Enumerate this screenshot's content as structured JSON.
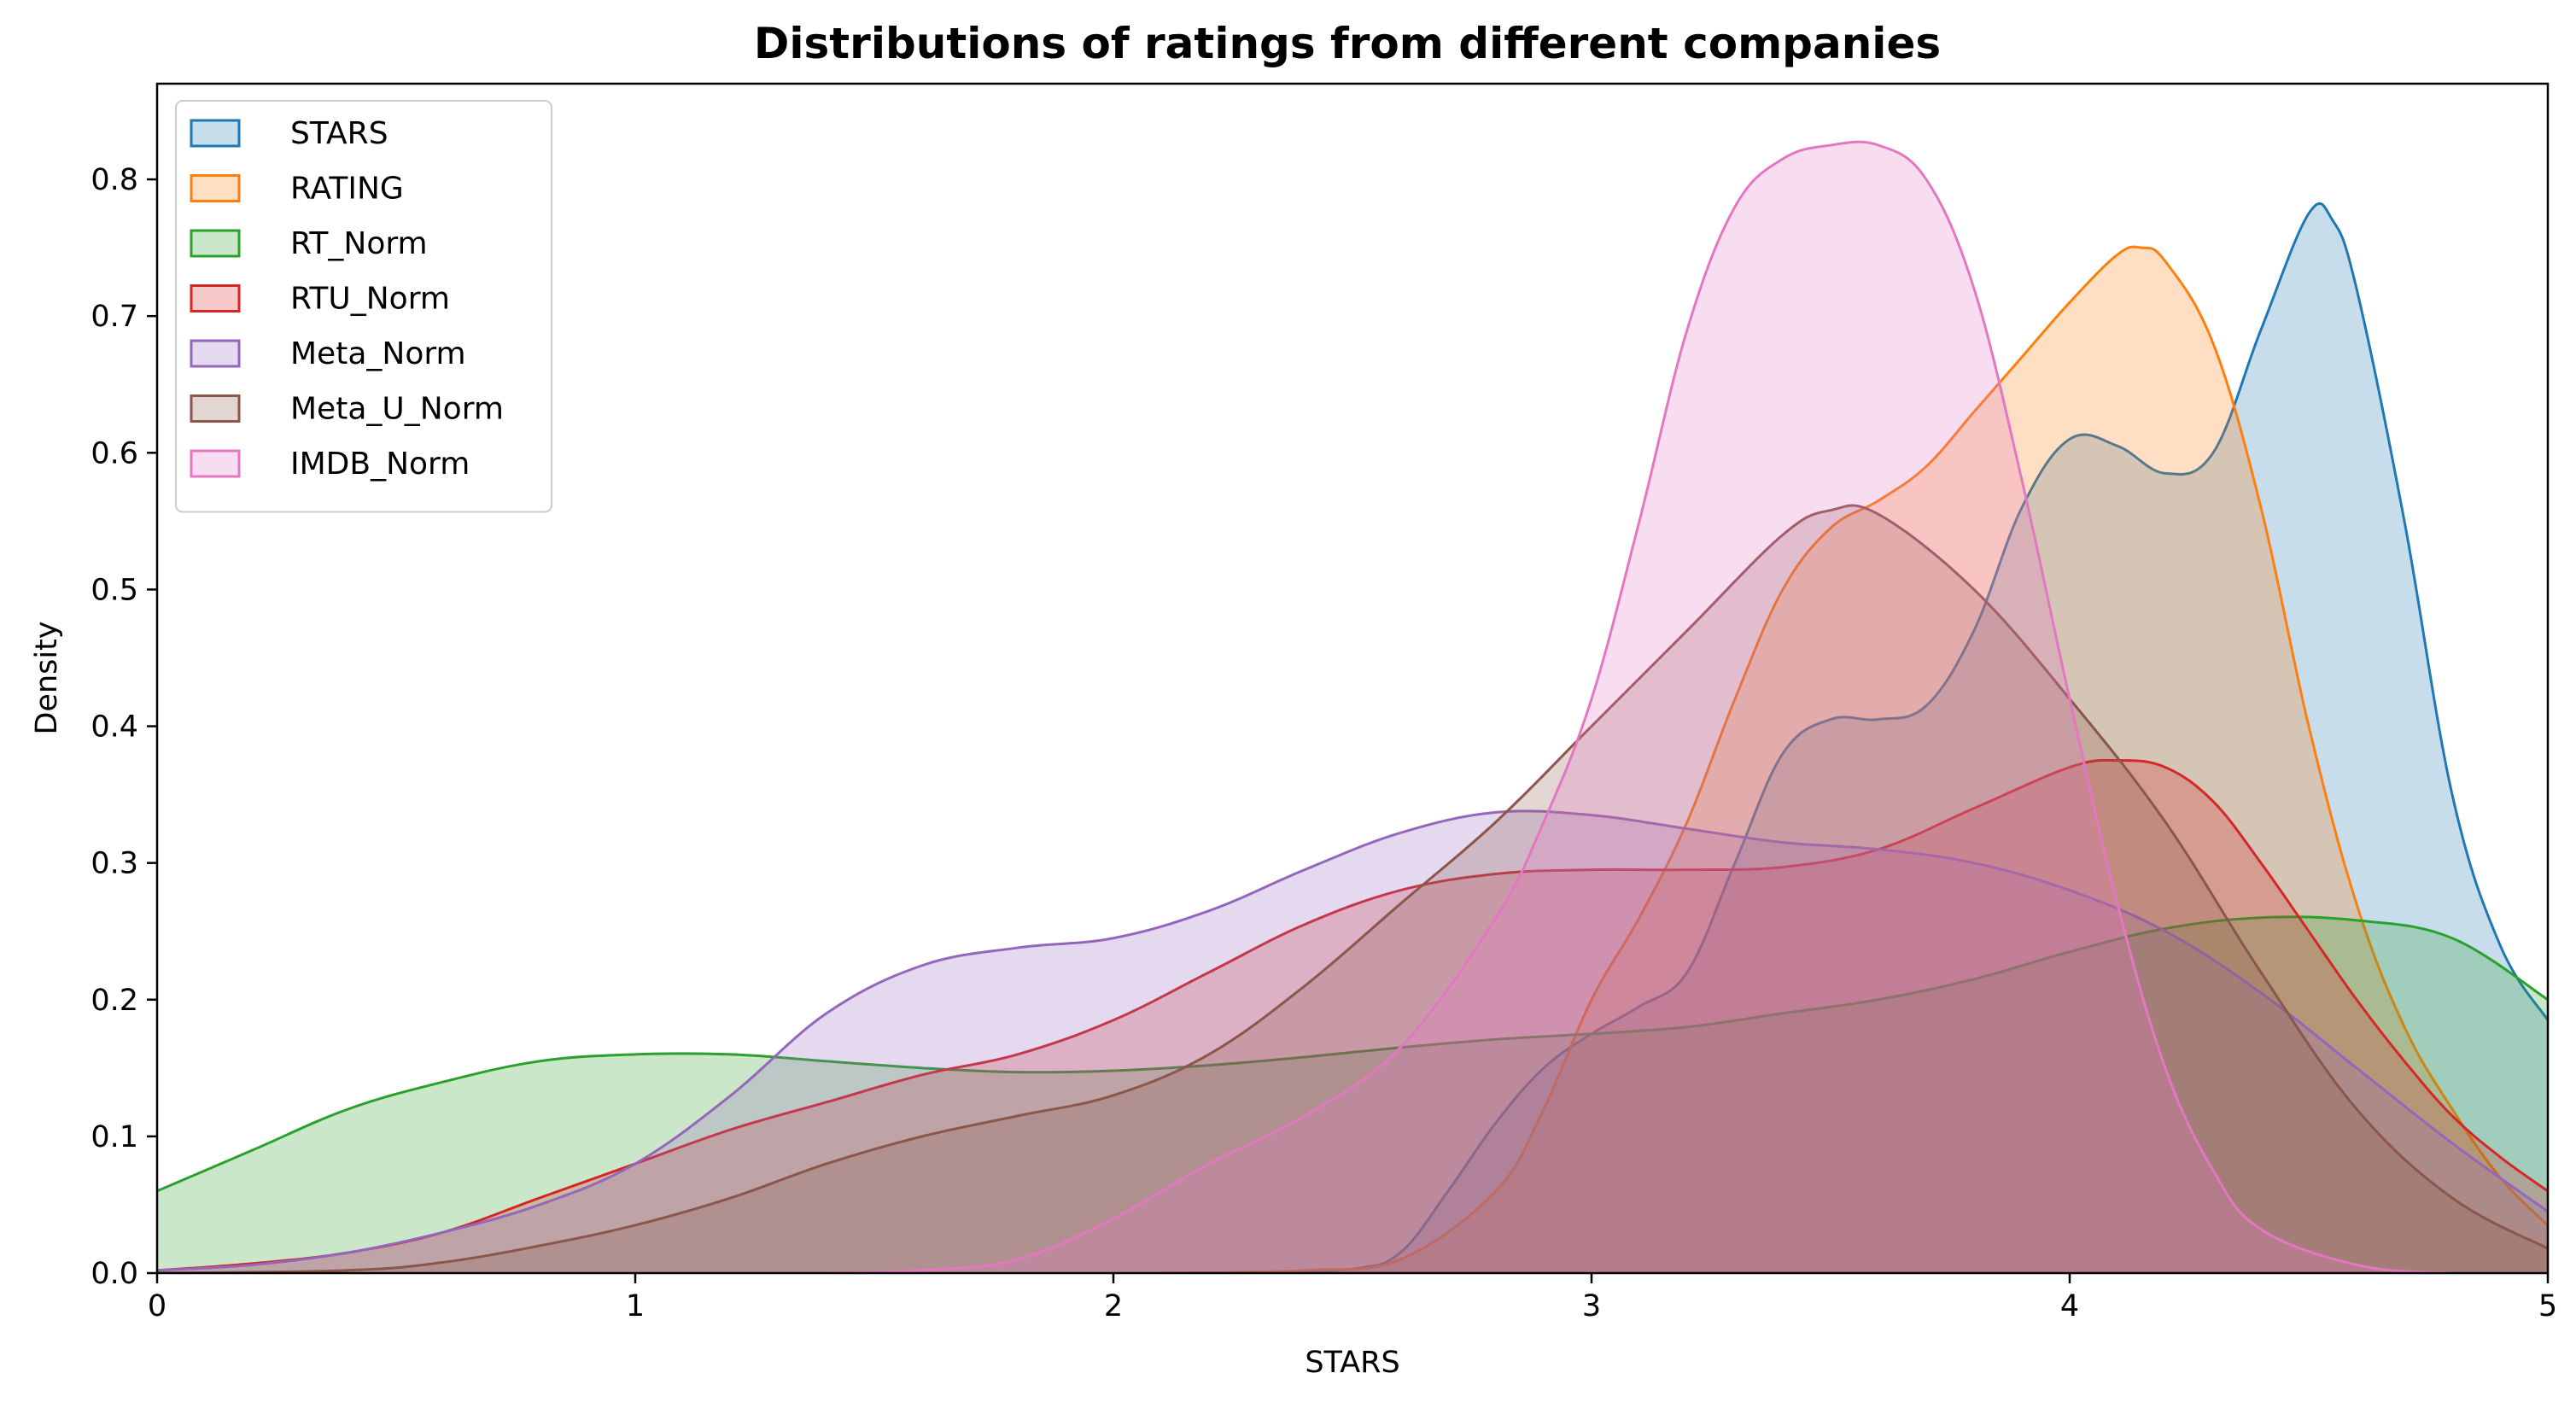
{
  "chart_data": {
    "type": "area",
    "title": "Distributions of ratings from different companies",
    "xlabel": "STARS",
    "ylabel": "Density",
    "xlim": [
      0,
      5
    ],
    "ylim": [
      0,
      0.87
    ],
    "xticks": [
      0,
      1,
      2,
      3,
      4,
      5
    ],
    "xtick_labels": [
      "0",
      "1",
      "2",
      "3",
      "4",
      "5"
    ],
    "yticks": [
      0.0,
      0.1,
      0.2,
      0.3,
      0.4,
      0.5,
      0.6,
      0.7,
      0.8
    ],
    "ytick_labels": [
      "0.0",
      "0.1",
      "0.2",
      "0.3",
      "0.4",
      "0.5",
      "0.6",
      "0.7",
      "0.8"
    ],
    "grid": false,
    "legend_position": "upper-left",
    "fill_alpha": 0.25,
    "series": [
      {
        "name": "STARS",
        "color": "#1f77b4",
        "points": [
          [
            2.3,
            0
          ],
          [
            2.5,
            0.003
          ],
          [
            2.6,
            0.015
          ],
          [
            2.7,
            0.06
          ],
          [
            2.8,
            0.11
          ],
          [
            2.9,
            0.15
          ],
          [
            3.0,
            0.175
          ],
          [
            3.1,
            0.195
          ],
          [
            3.2,
            0.22
          ],
          [
            3.3,
            0.3
          ],
          [
            3.4,
            0.38
          ],
          [
            3.5,
            0.405
          ],
          [
            3.6,
            0.405
          ],
          [
            3.7,
            0.415
          ],
          [
            3.8,
            0.47
          ],
          [
            3.9,
            0.56
          ],
          [
            4.0,
            0.61
          ],
          [
            4.1,
            0.605
          ],
          [
            4.2,
            0.585
          ],
          [
            4.3,
            0.6
          ],
          [
            4.4,
            0.69
          ],
          [
            4.5,
            0.775
          ],
          [
            4.55,
            0.77
          ],
          [
            4.6,
            0.72
          ],
          [
            4.7,
            0.55
          ],
          [
            4.8,
            0.35
          ],
          [
            4.9,
            0.24
          ],
          [
            5.0,
            0.185
          ]
        ]
      },
      {
        "name": "RATING",
        "color": "#ff7f0e",
        "points": [
          [
            2.1,
            0
          ],
          [
            2.4,
            0.002
          ],
          [
            2.6,
            0.01
          ],
          [
            2.8,
            0.06
          ],
          [
            2.9,
            0.12
          ],
          [
            3.0,
            0.2
          ],
          [
            3.1,
            0.26
          ],
          [
            3.2,
            0.33
          ],
          [
            3.3,
            0.42
          ],
          [
            3.4,
            0.5
          ],
          [
            3.5,
            0.545
          ],
          [
            3.6,
            0.565
          ],
          [
            3.7,
            0.59
          ],
          [
            3.8,
            0.63
          ],
          [
            3.9,
            0.67
          ],
          [
            4.0,
            0.71
          ],
          [
            4.1,
            0.745
          ],
          [
            4.15,
            0.75
          ],
          [
            4.2,
            0.74
          ],
          [
            4.3,
            0.68
          ],
          [
            4.4,
            0.56
          ],
          [
            4.5,
            0.4
          ],
          [
            4.6,
            0.27
          ],
          [
            4.7,
            0.18
          ],
          [
            4.8,
            0.12
          ],
          [
            4.9,
            0.07
          ],
          [
            5.0,
            0.035
          ]
        ]
      },
      {
        "name": "RT_Norm",
        "color": "#2ca02c",
        "points": [
          [
            0.0,
            0.06
          ],
          [
            0.2,
            0.09
          ],
          [
            0.4,
            0.12
          ],
          [
            0.6,
            0.14
          ],
          [
            0.8,
            0.155
          ],
          [
            1.0,
            0.16
          ],
          [
            1.2,
            0.16
          ],
          [
            1.4,
            0.155
          ],
          [
            1.6,
            0.15
          ],
          [
            1.8,
            0.147
          ],
          [
            2.0,
            0.148
          ],
          [
            2.2,
            0.152
          ],
          [
            2.4,
            0.158
          ],
          [
            2.6,
            0.165
          ],
          [
            2.8,
            0.171
          ],
          [
            3.0,
            0.175
          ],
          [
            3.2,
            0.18
          ],
          [
            3.4,
            0.19
          ],
          [
            3.6,
            0.2
          ],
          [
            3.8,
            0.215
          ],
          [
            4.0,
            0.235
          ],
          [
            4.2,
            0.252
          ],
          [
            4.4,
            0.26
          ],
          [
            4.6,
            0.258
          ],
          [
            4.8,
            0.245
          ],
          [
            5.0,
            0.2
          ]
        ]
      },
      {
        "name": "RTU_Norm",
        "color": "#d62728",
        "points": [
          [
            0.0,
            0.002
          ],
          [
            0.2,
            0.007
          ],
          [
            0.4,
            0.015
          ],
          [
            0.6,
            0.03
          ],
          [
            0.8,
            0.055
          ],
          [
            1.0,
            0.08
          ],
          [
            1.2,
            0.105
          ],
          [
            1.4,
            0.125
          ],
          [
            1.6,
            0.145
          ],
          [
            1.8,
            0.16
          ],
          [
            2.0,
            0.185
          ],
          [
            2.2,
            0.22
          ],
          [
            2.4,
            0.255
          ],
          [
            2.6,
            0.28
          ],
          [
            2.8,
            0.292
          ],
          [
            3.0,
            0.295
          ],
          [
            3.2,
            0.295
          ],
          [
            3.4,
            0.297
          ],
          [
            3.6,
            0.31
          ],
          [
            3.8,
            0.34
          ],
          [
            4.0,
            0.37
          ],
          [
            4.1,
            0.375
          ],
          [
            4.2,
            0.37
          ],
          [
            4.3,
            0.345
          ],
          [
            4.4,
            0.3
          ],
          [
            4.5,
            0.25
          ],
          [
            4.6,
            0.2
          ],
          [
            4.7,
            0.155
          ],
          [
            4.8,
            0.115
          ],
          [
            4.9,
            0.085
          ],
          [
            5.0,
            0.06
          ]
        ]
      },
      {
        "name": "Meta_Norm",
        "color": "#9467bd",
        "points": [
          [
            0.0,
            0.002
          ],
          [
            0.2,
            0.006
          ],
          [
            0.4,
            0.015
          ],
          [
            0.6,
            0.03
          ],
          [
            0.8,
            0.05
          ],
          [
            1.0,
            0.08
          ],
          [
            1.2,
            0.13
          ],
          [
            1.4,
            0.19
          ],
          [
            1.6,
            0.225
          ],
          [
            1.8,
            0.238
          ],
          [
            2.0,
            0.245
          ],
          [
            2.2,
            0.265
          ],
          [
            2.4,
            0.295
          ],
          [
            2.6,
            0.322
          ],
          [
            2.8,
            0.337
          ],
          [
            3.0,
            0.335
          ],
          [
            3.2,
            0.325
          ],
          [
            3.4,
            0.315
          ],
          [
            3.6,
            0.31
          ],
          [
            3.8,
            0.3
          ],
          [
            4.0,
            0.28
          ],
          [
            4.2,
            0.25
          ],
          [
            4.4,
            0.205
          ],
          [
            4.6,
            0.15
          ],
          [
            4.8,
            0.095
          ],
          [
            5.0,
            0.045
          ]
        ]
      },
      {
        "name": "Meta_U_Norm",
        "color": "#8c564b",
        "points": [
          [
            0.0,
            0
          ],
          [
            0.4,
            0.002
          ],
          [
            0.6,
            0.008
          ],
          [
            0.8,
            0.02
          ],
          [
            1.0,
            0.035
          ],
          [
            1.2,
            0.055
          ],
          [
            1.4,
            0.08
          ],
          [
            1.6,
            0.1
          ],
          [
            1.8,
            0.115
          ],
          [
            2.0,
            0.13
          ],
          [
            2.2,
            0.16
          ],
          [
            2.4,
            0.21
          ],
          [
            2.6,
            0.27
          ],
          [
            2.8,
            0.33
          ],
          [
            3.0,
            0.4
          ],
          [
            3.2,
            0.47
          ],
          [
            3.4,
            0.54
          ],
          [
            3.5,
            0.558
          ],
          [
            3.6,
            0.555
          ],
          [
            3.8,
            0.5
          ],
          [
            4.0,
            0.42
          ],
          [
            4.2,
            0.33
          ],
          [
            4.4,
            0.22
          ],
          [
            4.6,
            0.12
          ],
          [
            4.8,
            0.055
          ],
          [
            5.0,
            0.018
          ]
        ]
      },
      {
        "name": "IMDB_Norm",
        "color": "#e377c2",
        "points": [
          [
            1.4,
            0
          ],
          [
            1.6,
            0.002
          ],
          [
            1.8,
            0.01
          ],
          [
            2.0,
            0.04
          ],
          [
            2.2,
            0.08
          ],
          [
            2.4,
            0.115
          ],
          [
            2.6,
            0.165
          ],
          [
            2.8,
            0.26
          ],
          [
            2.9,
            0.33
          ],
          [
            3.0,
            0.42
          ],
          [
            3.1,
            0.55
          ],
          [
            3.2,
            0.69
          ],
          [
            3.3,
            0.78
          ],
          [
            3.4,
            0.815
          ],
          [
            3.5,
            0.825
          ],
          [
            3.6,
            0.825
          ],
          [
            3.7,
            0.8
          ],
          [
            3.8,
            0.72
          ],
          [
            3.9,
            0.58
          ],
          [
            4.0,
            0.42
          ],
          [
            4.1,
            0.27
          ],
          [
            4.2,
            0.15
          ],
          [
            4.3,
            0.075
          ],
          [
            4.4,
            0.032
          ],
          [
            4.6,
            0.006
          ],
          [
            4.8,
            0
          ],
          [
            5.0,
            0
          ]
        ]
      }
    ]
  }
}
